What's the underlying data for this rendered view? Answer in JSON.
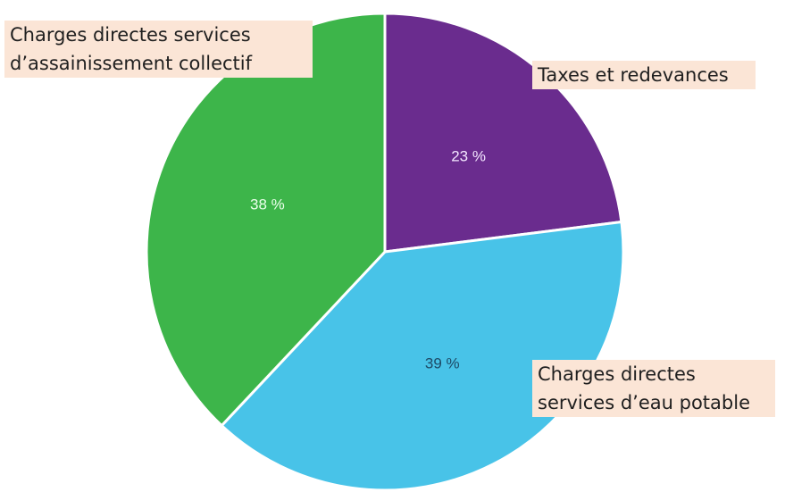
{
  "chart_data": {
    "type": "pie",
    "slices": [
      {
        "label": "Taxes et redevances",
        "value": 23,
        "value_label": "23 %",
        "color": "#6a2c8e",
        "text_color": "#f3e6ff"
      },
      {
        "label": "Charges directes services d’eau potable",
        "value": 39,
        "value_label": "39 %",
        "color": "#48c3e8",
        "text_color": "#1d4a66"
      },
      {
        "label": "Charges directes services d’assainissement collectif",
        "value": 38,
        "value_label": "38 %",
        "color": "#3db54a",
        "text_color": "#eaffea"
      }
    ],
    "start_angle_deg": 0,
    "direction": "clockwise"
  },
  "callouts": [
    {
      "lines": [
        "Charges directes services",
        "d’assainissement collectif"
      ]
    },
    {
      "lines": [
        "Taxes et redevances"
      ]
    },
    {
      "lines": [
        "Charges directes",
        "services d’eau potable"
      ]
    }
  ]
}
